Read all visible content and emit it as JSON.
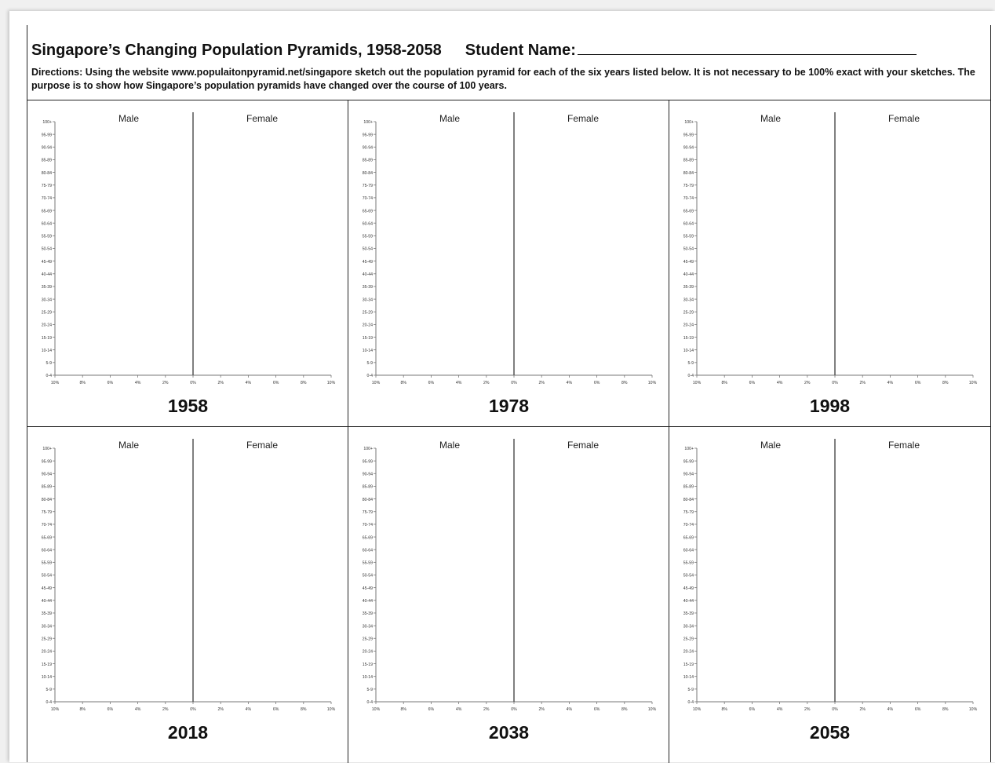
{
  "header": {
    "title": "Singapore’s Changing Population Pyramids, 1958-2058",
    "student_label": "Student Name:",
    "directions": "Directions: Using the website www.populaitonpyramid.net/singapore sketch out the population pyramid for each of the six years listed below. It is not necessary to be 100% exact with your sketches. The purpose is to show how Singapore’s population pyramids have changed over the course of 100 years."
  },
  "chart_data": [
    {
      "type": "bar",
      "title": "1958",
      "left_label": "Male",
      "right_label": "Female",
      "categories": [
        "100+",
        "95-99",
        "90-94",
        "85-89",
        "80-84",
        "75-79",
        "70-74",
        "65-69",
        "60-64",
        "55-59",
        "50-54",
        "45-49",
        "40-44",
        "35-39",
        "30-34",
        "25-29",
        "20-24",
        "15-19",
        "10-14",
        "5-9",
        "0-4"
      ],
      "x_ticks": [
        "10%",
        "8%",
        "6%",
        "4%",
        "2%",
        "0%",
        "2%",
        "4%",
        "6%",
        "8%",
        "10%"
      ],
      "xlim": [
        -10,
        10
      ],
      "series": []
    },
    {
      "type": "bar",
      "title": "1978",
      "left_label": "Male",
      "right_label": "Female",
      "categories": [
        "100+",
        "95-99",
        "90-94",
        "85-89",
        "80-84",
        "75-79",
        "70-74",
        "65-69",
        "60-64",
        "55-59",
        "50-54",
        "45-49",
        "40-44",
        "35-39",
        "30-34",
        "25-29",
        "20-24",
        "15-19",
        "10-14",
        "5-9",
        "0-4"
      ],
      "x_ticks": [
        "10%",
        "8%",
        "6%",
        "4%",
        "2%",
        "0%",
        "2%",
        "4%",
        "6%",
        "8%",
        "10%"
      ],
      "xlim": [
        -10,
        10
      ],
      "series": []
    },
    {
      "type": "bar",
      "title": "1998",
      "left_label": "Male",
      "right_label": "Female",
      "categories": [
        "100+",
        "95-99",
        "90-94",
        "85-89",
        "80-84",
        "75-79",
        "70-74",
        "65-69",
        "60-64",
        "55-59",
        "50-54",
        "45-49",
        "40-44",
        "35-39",
        "30-34",
        "25-29",
        "20-24",
        "15-19",
        "10-14",
        "5-9",
        "0-4"
      ],
      "x_ticks": [
        "10%",
        "8%",
        "6%",
        "4%",
        "2%",
        "0%",
        "2%",
        "4%",
        "6%",
        "8%",
        "10%"
      ],
      "xlim": [
        -10,
        10
      ],
      "series": []
    },
    {
      "type": "bar",
      "title": "2018",
      "left_label": "Male",
      "right_label": "Female",
      "categories": [
        "100+",
        "95-99",
        "90-94",
        "85-89",
        "80-84",
        "75-79",
        "70-74",
        "65-69",
        "60-64",
        "55-59",
        "50-54",
        "45-49",
        "40-44",
        "35-39",
        "30-34",
        "25-29",
        "20-24",
        "15-19",
        "10-14",
        "5-9",
        "0-4"
      ],
      "x_ticks": [
        "10%",
        "8%",
        "6%",
        "4%",
        "2%",
        "0%",
        "2%",
        "4%",
        "6%",
        "8%",
        "10%"
      ],
      "xlim": [
        -10,
        10
      ],
      "series": []
    },
    {
      "type": "bar",
      "title": "2038",
      "left_label": "Male",
      "right_label": "Female",
      "categories": [
        "100+",
        "95-99",
        "90-94",
        "85-89",
        "80-84",
        "75-79",
        "70-74",
        "65-69",
        "60-64",
        "55-59",
        "50-54",
        "45-49",
        "40-44",
        "35-39",
        "30-34",
        "25-29",
        "20-24",
        "15-19",
        "10-14",
        "5-9",
        "0-4"
      ],
      "x_ticks": [
        "10%",
        "8%",
        "6%",
        "4%",
        "2%",
        "0%",
        "2%",
        "4%",
        "6%",
        "8%",
        "10%"
      ],
      "xlim": [
        -10,
        10
      ],
      "series": []
    },
    {
      "type": "bar",
      "title": "2058",
      "left_label": "Male",
      "right_label": "Female",
      "categories": [
        "100+",
        "95-99",
        "90-94",
        "85-89",
        "80-84",
        "75-79",
        "70-74",
        "65-69",
        "60-64",
        "55-59",
        "50-54",
        "45-49",
        "40-44",
        "35-39",
        "30-34",
        "25-29",
        "20-24",
        "15-19",
        "10-14",
        "5-9",
        "0-4"
      ],
      "x_ticks": [
        "10%",
        "8%",
        "6%",
        "4%",
        "2%",
        "0%",
        "2%",
        "4%",
        "6%",
        "8%",
        "10%"
      ],
      "xlim": [
        -10,
        10
      ],
      "series": []
    }
  ]
}
